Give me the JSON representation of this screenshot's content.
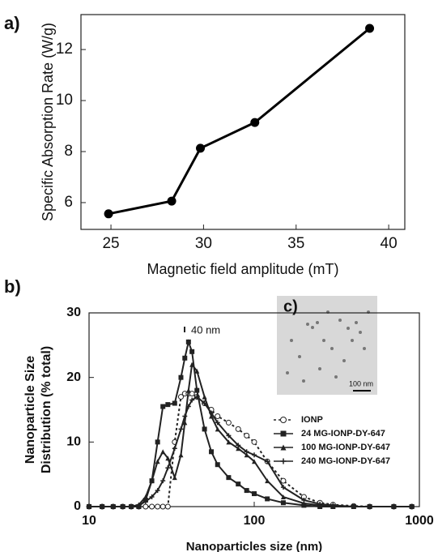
{
  "chart_data": [
    {
      "type": "line",
      "panel_label": "a)",
      "xlabel": "Magnetic field amplitude (mT)",
      "ylabel": "Specific Absorption Rate (W/g)",
      "x": [
        24.87,
        28.28,
        29.83,
        32.77,
        38.97
      ],
      "series": [
        {
          "color": "#000000",
          "marker": "circle",
          "values": [
            5.56,
            6.06,
            8.13,
            9.14,
            12.83
          ]
        }
      ],
      "xlim": [
        23.38,
        40.87
      ],
      "ylim": [
        4.95,
        13.37
      ],
      "xticks": [
        25,
        30,
        35,
        40
      ],
      "yticks": [
        6,
        8,
        10,
        12
      ]
    },
    {
      "type": "line",
      "panel_label": "b)",
      "xlabel": "Nanoparticles size (nm)",
      "ylabel": [
        "Nanoparticle  Size",
        "Distribution (% total)"
      ],
      "xscale": "log",
      "annotations": [
        "40 nm"
      ],
      "inset": {
        "label": "c)",
        "scale_bar": "100 nm"
      },
      "x": [
        10,
        12,
        14,
        16,
        18,
        20,
        22,
        24,
        26,
        28,
        30,
        33,
        36,
        38,
        40,
        42,
        45,
        50,
        55,
        60,
        70,
        80,
        90,
        100,
        120,
        150,
        200,
        250,
        300,
        400,
        500,
        700,
        900
      ],
      "series": [
        {
          "name": "IONP",
          "color": "#222222",
          "marker": "open-circle",
          "dash": true,
          "values": [
            0,
            0,
            0,
            0,
            0,
            0,
            0,
            0,
            0,
            0,
            0,
            10,
            17,
            17.5,
            17.5,
            17.5,
            17,
            16,
            15,
            14,
            13,
            12,
            11,
            10,
            7,
            4,
            1.5,
            0.6,
            0.3,
            0.1,
            0,
            0,
            0
          ]
        },
        {
          "name": " 24 MG-IONP-DY-647",
          "color": "#222222",
          "marker": "square",
          "values": [
            0,
            0,
            0,
            0,
            0,
            0,
            1,
            4,
            10,
            15.5,
            15.8,
            16,
            20,
            23,
            25.5,
            24,
            18,
            12,
            8.5,
            6.5,
            4.5,
            3.5,
            2.5,
            2,
            1.2,
            0.6,
            0.2,
            0,
            0,
            0,
            0,
            0,
            0
          ]
        },
        {
          "name": "100 MG-IONP-DY-647",
          "color": "#222222",
          "marker": "triangle",
          "values": [
            0,
            0,
            0,
            0,
            0,
            0.3,
            1.5,
            4,
            7,
            8.5,
            7.5,
            4.5,
            8,
            13,
            18,
            22,
            21,
            17,
            14,
            12,
            10,
            9,
            8,
            7,
            4,
            1.5,
            0.5,
            0.2,
            0,
            0,
            0,
            0,
            0
          ]
        },
        {
          "name": "240 MG-IONP-DY-647",
          "color": "#222222",
          "marker": "plus",
          "values": [
            0,
            0,
            0,
            0,
            0,
            0.2,
            0.8,
            1.5,
            2.5,
            4,
            6,
            9,
            12,
            14,
            15.5,
            16.5,
            17,
            16,
            14.5,
            13,
            11,
            9.5,
            8.5,
            8,
            7,
            3,
            1,
            0.4,
            0.2,
            0,
            0,
            0,
            0
          ]
        }
      ],
      "xlim": [
        10,
        1000
      ],
      "ylim": [
        0,
        30
      ],
      "xticks": [
        10,
        100,
        1000
      ],
      "yticks": [
        0,
        10,
        20,
        30
      ]
    }
  ]
}
